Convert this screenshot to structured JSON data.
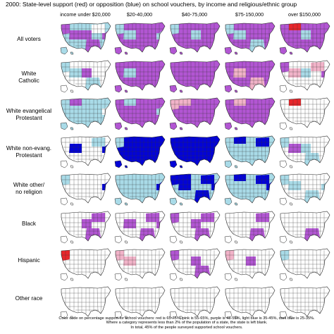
{
  "title": "2000:  State-level support (red) or opposition (blue) on school vouchers, by income and religious/ethnic group",
  "columns": [
    "income under $20,000",
    "$20-40,000",
    "$40-75,000",
    "$75-150,000",
    "over $150,000"
  ],
  "rows": [
    {
      "label": "All voters",
      "maps": [
        {
          "base": "lightblue",
          "patches": [
            "purple",
            "lightblue",
            "purple",
            "purple",
            "white",
            "purple",
            "purple"
          ]
        },
        {
          "base": "purple",
          "patches": [
            "lightblue",
            "purple",
            "lightblue",
            "purple",
            "purple",
            "purple",
            "lightblue"
          ]
        },
        {
          "base": "purple",
          "patches": [
            "lightblue",
            "purple",
            "purple",
            "lightblue",
            "purple",
            "purple",
            "purple"
          ]
        },
        {
          "base": "purple",
          "patches": [
            "lightblue",
            "purple",
            "lightblue",
            "purple",
            "purple",
            "lightblue",
            "purple"
          ]
        },
        {
          "base": "purple",
          "patches": [
            "purple",
            "red",
            "purple",
            "lightblue",
            "purple",
            "purple",
            "purple"
          ]
        }
      ]
    },
    {
      "label": "White\nCatholic",
      "maps": [
        {
          "base": "white",
          "patches": [
            "lightblue",
            "white",
            "lightblue",
            "purple",
            "white",
            "lightblue",
            "white"
          ]
        },
        {
          "base": "purple",
          "patches": [
            "purple",
            "purple",
            "lightblue",
            "purple",
            "purple",
            "purple",
            "purple"
          ]
        },
        {
          "base": "purple",
          "patches": [
            "purple",
            "purple",
            "purple",
            "purple",
            "purple",
            "purple",
            "purple"
          ]
        },
        {
          "base": "purple",
          "patches": [
            "purple",
            "purple",
            "pink",
            "purple",
            "purple",
            "pink",
            "purple"
          ]
        },
        {
          "base": "white",
          "patches": [
            "purple",
            "white",
            "pink",
            "lightblue",
            "pink",
            "white",
            "purple"
          ]
        }
      ]
    },
    {
      "label": "White evangelical\nProtestant",
      "maps": [
        {
          "base": "lightblue",
          "patches": [
            "lightblue",
            "purple",
            "lightblue",
            "lightblue",
            "lightblue",
            "lightblue",
            "white"
          ]
        },
        {
          "base": "purple",
          "patches": [
            "purple",
            "lightblue",
            "purple",
            "purple",
            "purple",
            "purple",
            "lightblue"
          ]
        },
        {
          "base": "purple",
          "patches": [
            "pink",
            "pink",
            "purple",
            "purple",
            "purple",
            "purple",
            "purple"
          ]
        },
        {
          "base": "purple",
          "patches": [
            "purple",
            "pink",
            "purple",
            "purple",
            "purple",
            "purple",
            "purple"
          ]
        },
        {
          "base": "white",
          "patches": [
            "white",
            "red",
            "white",
            "white",
            "white",
            "white",
            "white"
          ]
        }
      ]
    },
    {
      "label": "White non-evang.\nProtestant",
      "maps": [
        {
          "base": "white",
          "patches": [
            "white",
            "white",
            "blue",
            "white",
            "lightblue",
            "white",
            "blue"
          ]
        },
        {
          "base": "blue",
          "patches": [
            "lightblue",
            "blue",
            "blue",
            "blue",
            "blue",
            "blue",
            "blue"
          ]
        },
        {
          "base": "blue",
          "patches": [
            "blue",
            "blue",
            "blue",
            "blue",
            "blue",
            "blue",
            "blue"
          ]
        },
        {
          "base": "lightblue",
          "patches": [
            "lightblue",
            "blue",
            "lightblue",
            "lightblue",
            "blue",
            "lightblue",
            "lightblue"
          ]
        },
        {
          "base": "white",
          "patches": [
            "lightblue",
            "white",
            "purple",
            "lightblue",
            "white",
            "lightblue",
            "white"
          ]
        }
      ]
    },
    {
      "label": "White other/\nno religion",
      "maps": [
        {
          "base": "white",
          "patches": [
            "lightblue",
            "white",
            "white",
            "white",
            "white",
            "white",
            "blue"
          ]
        },
        {
          "base": "lightblue",
          "patches": [
            "lightblue",
            "lightblue",
            "lightblue",
            "lightblue",
            "lightblue",
            "lightblue",
            "blue"
          ]
        },
        {
          "base": "lightblue",
          "patches": [
            "blue",
            "blue",
            "blue",
            "lightblue",
            "blue",
            "blue",
            "blue"
          ]
        },
        {
          "base": "lightblue",
          "patches": [
            "lightblue",
            "blue",
            "lightblue",
            "lightblue",
            "blue",
            "lightblue",
            "blue"
          ]
        },
        {
          "base": "white",
          "patches": [
            "lightblue",
            "white",
            "lightblue",
            "white",
            "white",
            "lightblue",
            "lightblue"
          ]
        }
      ]
    },
    {
      "label": "Black",
      "maps": [
        {
          "base": "white",
          "patches": [
            "white",
            "white",
            "white",
            "purple",
            "purple",
            "purple",
            "white"
          ]
        },
        {
          "base": "white",
          "patches": [
            "white",
            "white",
            "purple",
            "white",
            "purple",
            "purple",
            "purple"
          ]
        },
        {
          "base": "white",
          "patches": [
            "purple",
            "white",
            "white",
            "purple",
            "purple",
            "purple",
            "white"
          ]
        },
        {
          "base": "white",
          "patches": [
            "white",
            "white",
            "white",
            "white",
            "purple",
            "purple",
            "white"
          ]
        },
        {
          "base": "white",
          "patches": [
            "white",
            "white",
            "white",
            "white",
            "white",
            "purple",
            "white"
          ]
        }
      ]
    },
    {
      "label": "Hispanic",
      "maps": [
        {
          "base": "white",
          "patches": [
            "red",
            "white",
            "white",
            "white",
            "white",
            "white",
            "white"
          ]
        },
        {
          "base": "white",
          "patches": [
            "pink",
            "white",
            "pink",
            "white",
            "white",
            "white",
            "white"
          ]
        },
        {
          "base": "white",
          "patches": [
            "purple",
            "white",
            "white",
            "purple",
            "white",
            "purple",
            "white"
          ]
        },
        {
          "base": "white",
          "patches": [
            "pink",
            "white",
            "white",
            "purple",
            "white",
            "white",
            "white"
          ]
        },
        {
          "base": "white",
          "patches": [
            "lightblue",
            "white",
            "white",
            "white",
            "white",
            "white",
            "white"
          ]
        }
      ]
    },
    {
      "label": "Other race",
      "maps": [
        {
          "base": "white",
          "patches": [
            "white",
            "white",
            "white",
            "white",
            "white",
            "white",
            "white"
          ]
        },
        {
          "base": "white",
          "patches": [
            "white",
            "white",
            "white",
            "white",
            "white",
            "white",
            "white"
          ]
        },
        {
          "base": "white",
          "patches": [
            "white",
            "white",
            "white",
            "white",
            "white",
            "white",
            "white"
          ]
        },
        {
          "base": "white",
          "patches": [
            "white",
            "white",
            "white",
            "white",
            "white",
            "white",
            "white"
          ]
        },
        {
          "base": "white",
          "patches": [
            "white",
            "white",
            "white",
            "white",
            "white",
            "white",
            "white"
          ]
        }
      ]
    }
  ],
  "palette": {
    "red": "#e8262b",
    "pink": "#f2b3c9",
    "purple": "#b256d3",
    "lightblue": "#a9dbe8",
    "blue": "#0303d6",
    "white": "#ffffff"
  },
  "footer": {
    "line1": "Color code on percentage support for school vouchers:  red is 65-75%,  pink is 55-65%,  purple is 45-55%,  light blue is 35-45%,  dark blue is 25-35%.",
    "line2": "Where a category represents less than 2% of the population of a state, the state is left blank.",
    "line3": "In total, 45% of the people surveyed supported school vouchers."
  }
}
